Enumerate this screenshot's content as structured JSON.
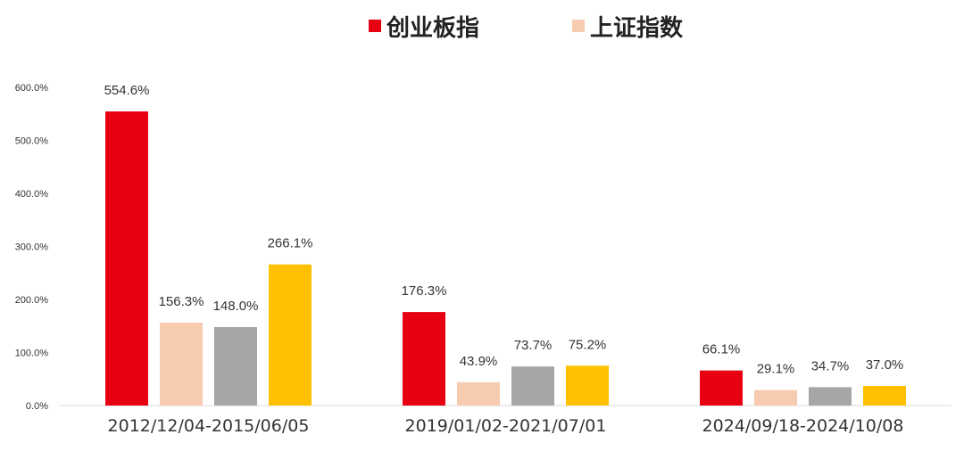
{
  "chart_data": {
    "type": "bar",
    "categories": [
      "2012/12/04-2015/06/05",
      "2019/01/02-2021/07/01",
      "2024/09/18-2024/10/08"
    ],
    "series": [
      {
        "name": "创业板指",
        "color": "#E60012",
        "values": [
          554.6,
          176.3,
          66.1
        ],
        "labels": [
          "554.6%",
          "176.3%",
          "66.1%"
        ]
      },
      {
        "name": "上证指数",
        "color": "#F6CBB0",
        "values": [
          156.3,
          43.9,
          29.1
        ],
        "labels": [
          "156.3%",
          "43.9%",
          "29.1%"
        ]
      },
      {
        "color": "#A6A6A6",
        "values": [
          148.0,
          73.7,
          34.7
        ],
        "labels": [
          "148.0%",
          "73.7%",
          "34.7%"
        ]
      },
      {
        "color": "#FFC000",
        "values": [
          266.1,
          75.2,
          37.0
        ],
        "labels": [
          "266.1%",
          "75.2%",
          "37.0%"
        ]
      }
    ],
    "ylim": [
      0,
      600
    ],
    "yticks": [
      0,
      100,
      200,
      300,
      400,
      500,
      600
    ],
    "ytick_labels": [
      "0.0%",
      "100.0%",
      "200.0%",
      "300.0%",
      "400.0%",
      "500.0%",
      "600.0%"
    ],
    "legend_position": "top-center",
    "grid": false
  }
}
